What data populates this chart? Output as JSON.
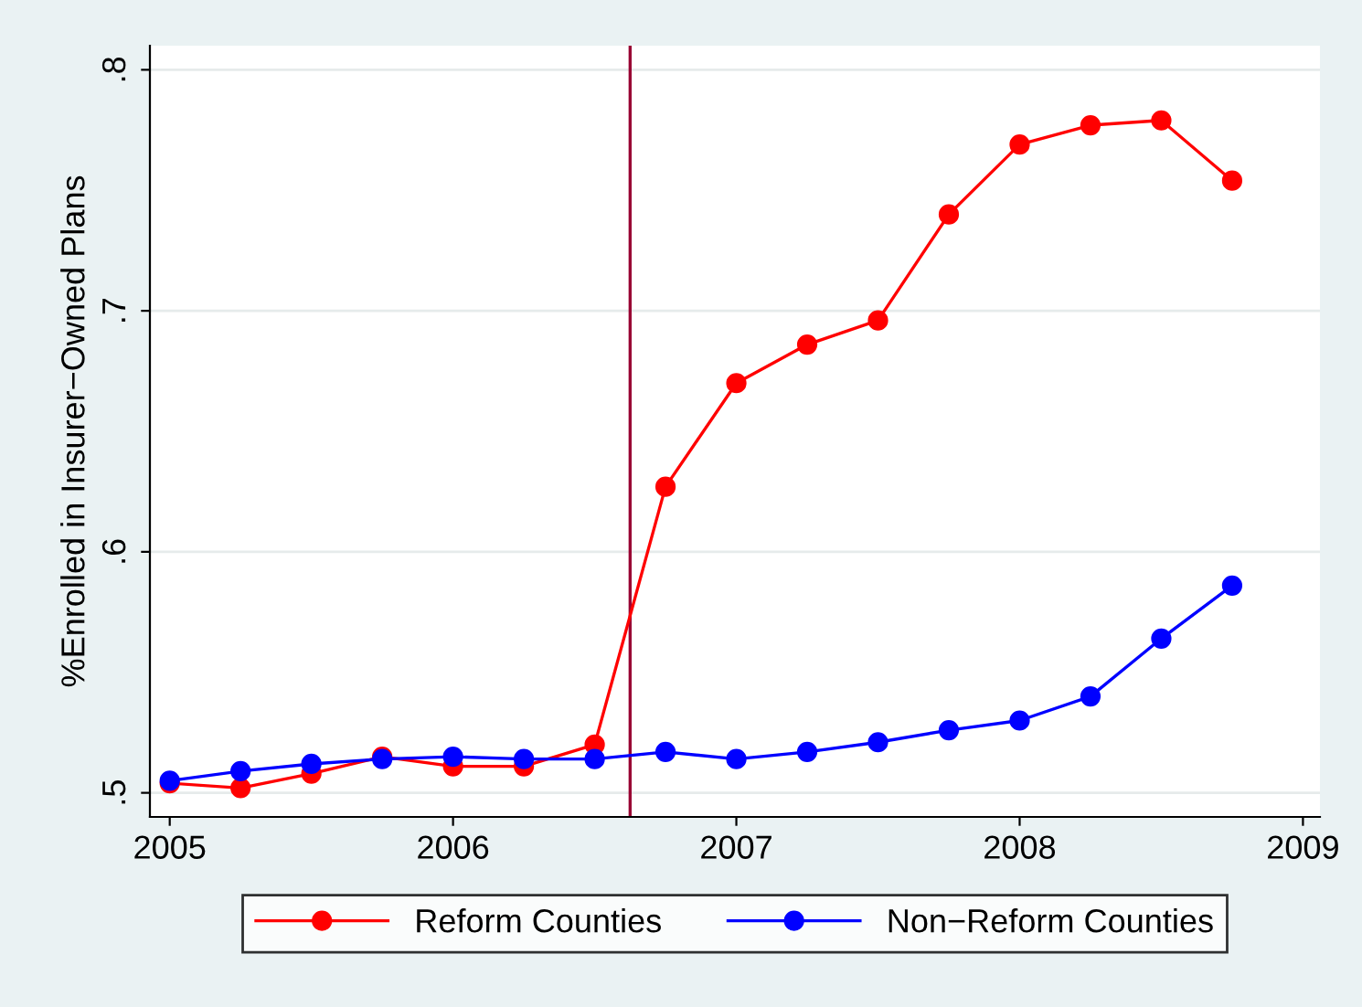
{
  "chart_data": {
    "type": "line",
    "ylabel": "%Enrolled in Insurer−Owned Plans",
    "x": [
      2005,
      2005.25,
      2005.5,
      2005.75,
      2006,
      2006.25,
      2006.5,
      2006.75,
      2007,
      2007.25,
      2007.5,
      2007.75,
      2008,
      2008.25,
      2008.5,
      2008.75
    ],
    "series": [
      {
        "name": "Reform Counties",
        "color": "#ff0000",
        "values": [
          0.504,
          0.502,
          0.508,
          0.515,
          0.511,
          0.511,
          0.52,
          0.627,
          0.67,
          0.686,
          0.696,
          0.74,
          0.769,
          0.777,
          0.779,
          0.754
        ]
      },
      {
        "name": "Non−Reform Counties",
        "color": "#0000ff",
        "values": [
          0.505,
          0.509,
          0.512,
          0.514,
          0.515,
          0.514,
          0.514,
          0.517,
          0.514,
          0.517,
          0.521,
          0.526,
          0.53,
          0.54,
          0.564,
          0.586
        ]
      }
    ],
    "xlim": [
      2004.93,
      2009.06
    ],
    "xticks": [
      2005,
      2006,
      2007,
      2008,
      2009
    ],
    "ylim": [
      0.49,
      0.81
    ],
    "yticks": [
      {
        "value": 0.5,
        "label": ".5"
      },
      {
        "value": 0.6,
        "label": ".6"
      },
      {
        "value": 0.7,
        "label": ".7"
      },
      {
        "value": 0.8,
        "label": ".8"
      }
    ],
    "ref_lines": [
      {
        "axis": "x",
        "value": 2006.625,
        "color": "#990033"
      }
    ],
    "grid": "y",
    "legend": "bottom",
    "marker": "circle",
    "line_style": "solid"
  }
}
